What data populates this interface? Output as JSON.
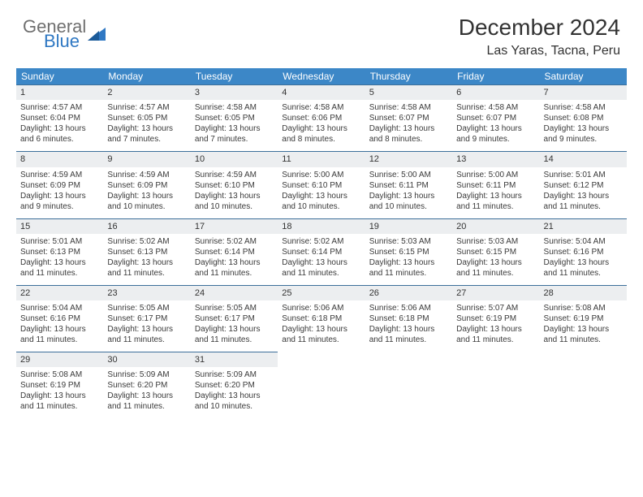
{
  "logo": {
    "word1": "General",
    "word2": "Blue"
  },
  "title": "December 2024",
  "location": "Las Yaras, Tacna, Peru",
  "colors": {
    "header_bg": "#3c87c7",
    "header_text": "#ffffff",
    "daynum_bg": "#eceef0",
    "row_border": "#3c6f9a",
    "logo_gray": "#6f6f6f",
    "logo_blue": "#2f78c3"
  },
  "weekdays": [
    "Sunday",
    "Monday",
    "Tuesday",
    "Wednesday",
    "Thursday",
    "Friday",
    "Saturday"
  ],
  "days": [
    {
      "n": 1,
      "sr": "4:57 AM",
      "ss": "6:04 PM",
      "dl": "13 hours and 6 minutes."
    },
    {
      "n": 2,
      "sr": "4:57 AM",
      "ss": "6:05 PM",
      "dl": "13 hours and 7 minutes."
    },
    {
      "n": 3,
      "sr": "4:58 AM",
      "ss": "6:05 PM",
      "dl": "13 hours and 7 minutes."
    },
    {
      "n": 4,
      "sr": "4:58 AM",
      "ss": "6:06 PM",
      "dl": "13 hours and 8 minutes."
    },
    {
      "n": 5,
      "sr": "4:58 AM",
      "ss": "6:07 PM",
      "dl": "13 hours and 8 minutes."
    },
    {
      "n": 6,
      "sr": "4:58 AM",
      "ss": "6:07 PM",
      "dl": "13 hours and 9 minutes."
    },
    {
      "n": 7,
      "sr": "4:58 AM",
      "ss": "6:08 PM",
      "dl": "13 hours and 9 minutes."
    },
    {
      "n": 8,
      "sr": "4:59 AM",
      "ss": "6:09 PM",
      "dl": "13 hours and 9 minutes."
    },
    {
      "n": 9,
      "sr": "4:59 AM",
      "ss": "6:09 PM",
      "dl": "13 hours and 10 minutes."
    },
    {
      "n": 10,
      "sr": "4:59 AM",
      "ss": "6:10 PM",
      "dl": "13 hours and 10 minutes."
    },
    {
      "n": 11,
      "sr": "5:00 AM",
      "ss": "6:10 PM",
      "dl": "13 hours and 10 minutes."
    },
    {
      "n": 12,
      "sr": "5:00 AM",
      "ss": "6:11 PM",
      "dl": "13 hours and 10 minutes."
    },
    {
      "n": 13,
      "sr": "5:00 AM",
      "ss": "6:11 PM",
      "dl": "13 hours and 11 minutes."
    },
    {
      "n": 14,
      "sr": "5:01 AM",
      "ss": "6:12 PM",
      "dl": "13 hours and 11 minutes."
    },
    {
      "n": 15,
      "sr": "5:01 AM",
      "ss": "6:13 PM",
      "dl": "13 hours and 11 minutes."
    },
    {
      "n": 16,
      "sr": "5:02 AM",
      "ss": "6:13 PM",
      "dl": "13 hours and 11 minutes."
    },
    {
      "n": 17,
      "sr": "5:02 AM",
      "ss": "6:14 PM",
      "dl": "13 hours and 11 minutes."
    },
    {
      "n": 18,
      "sr": "5:02 AM",
      "ss": "6:14 PM",
      "dl": "13 hours and 11 minutes."
    },
    {
      "n": 19,
      "sr": "5:03 AM",
      "ss": "6:15 PM",
      "dl": "13 hours and 11 minutes."
    },
    {
      "n": 20,
      "sr": "5:03 AM",
      "ss": "6:15 PM",
      "dl": "13 hours and 11 minutes."
    },
    {
      "n": 21,
      "sr": "5:04 AM",
      "ss": "6:16 PM",
      "dl": "13 hours and 11 minutes."
    },
    {
      "n": 22,
      "sr": "5:04 AM",
      "ss": "6:16 PM",
      "dl": "13 hours and 11 minutes."
    },
    {
      "n": 23,
      "sr": "5:05 AM",
      "ss": "6:17 PM",
      "dl": "13 hours and 11 minutes."
    },
    {
      "n": 24,
      "sr": "5:05 AM",
      "ss": "6:17 PM",
      "dl": "13 hours and 11 minutes."
    },
    {
      "n": 25,
      "sr": "5:06 AM",
      "ss": "6:18 PM",
      "dl": "13 hours and 11 minutes."
    },
    {
      "n": 26,
      "sr": "5:06 AM",
      "ss": "6:18 PM",
      "dl": "13 hours and 11 minutes."
    },
    {
      "n": 27,
      "sr": "5:07 AM",
      "ss": "6:19 PM",
      "dl": "13 hours and 11 minutes."
    },
    {
      "n": 28,
      "sr": "5:08 AM",
      "ss": "6:19 PM",
      "dl": "13 hours and 11 minutes."
    },
    {
      "n": 29,
      "sr": "5:08 AM",
      "ss": "6:19 PM",
      "dl": "13 hours and 11 minutes."
    },
    {
      "n": 30,
      "sr": "5:09 AM",
      "ss": "6:20 PM",
      "dl": "13 hours and 11 minutes."
    },
    {
      "n": 31,
      "sr": "5:09 AM",
      "ss": "6:20 PM",
      "dl": "13 hours and 10 minutes."
    }
  ],
  "labels": {
    "sunrise": "Sunrise:",
    "sunset": "Sunset:",
    "daylight": "Daylight:"
  }
}
